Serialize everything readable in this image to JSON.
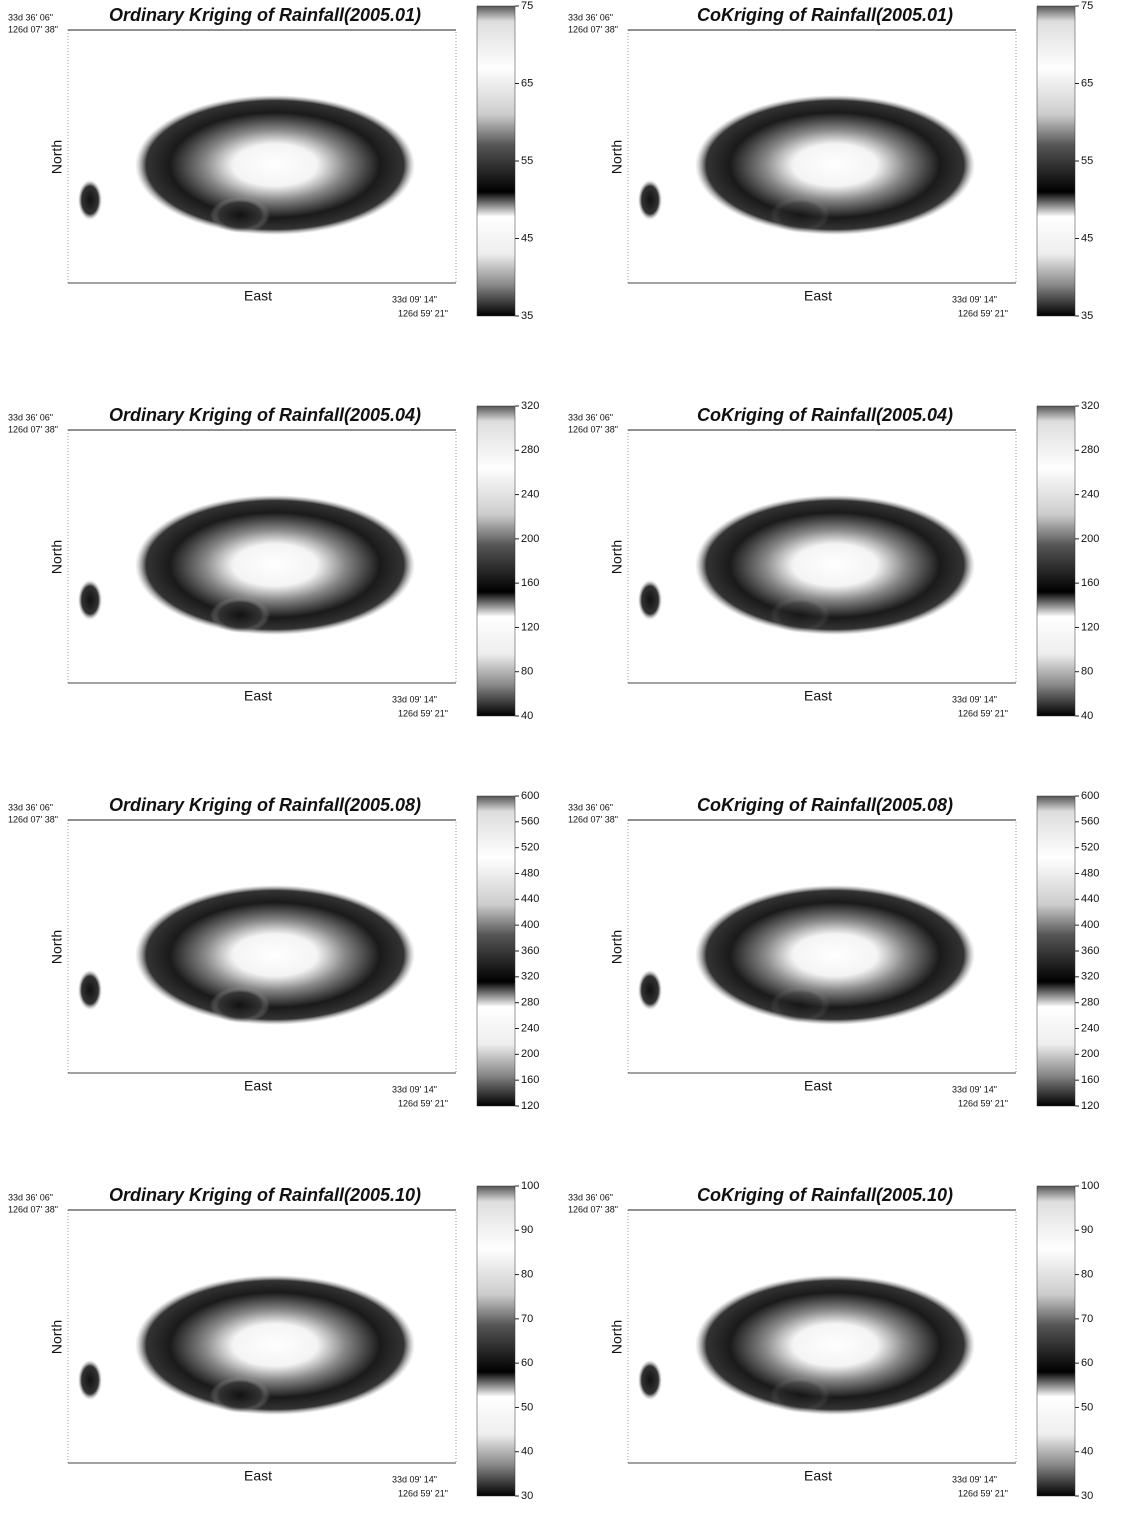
{
  "coordinates": {
    "top_left": [
      "33d 36' 06\"",
      "126d 07' 38\""
    ],
    "bottom_right": [
      "33d 09' 14\"",
      "126d 59' 21\""
    ]
  },
  "axis_labels": {
    "y": "North",
    "x": "East"
  },
  "panels": [
    {
      "title": "Ordinary Kriging of Rainfall(2005.01)",
      "colorbar_ticks": [
        35,
        45,
        55,
        65,
        75
      ]
    },
    {
      "title": "CoKriging of Rainfall(2005.01)",
      "colorbar_ticks": [
        35,
        45,
        55,
        65,
        75
      ]
    },
    {
      "title": "Ordinary Kriging of Rainfall(2005.04)",
      "colorbar_ticks": [
        40,
        80,
        120,
        160,
        200,
        240,
        280,
        320
      ]
    },
    {
      "title": "CoKriging of Rainfall(2005.04)",
      "colorbar_ticks": [
        40,
        80,
        120,
        160,
        200,
        240,
        280,
        320
      ]
    },
    {
      "title": "Ordinary Kriging of Rainfall(2005.08)",
      "colorbar_ticks": [
        120,
        160,
        200,
        240,
        280,
        320,
        360,
        400,
        440,
        480,
        520,
        560,
        600
      ]
    },
    {
      "title": "CoKriging of Rainfall(2005.08)",
      "colorbar_ticks": [
        120,
        160,
        200,
        240,
        280,
        320,
        360,
        400,
        440,
        480,
        520,
        560,
        600
      ]
    },
    {
      "title": "Ordinary Kriging of Rainfall(2005.10)",
      "colorbar_ticks": [
        30,
        40,
        50,
        60,
        70,
        80,
        90,
        100
      ]
    },
    {
      "title": "CoKriging of Rainfall(2005.10)",
      "colorbar_ticks": [
        30,
        40,
        50,
        60,
        70,
        80,
        90,
        100
      ]
    }
  ]
}
